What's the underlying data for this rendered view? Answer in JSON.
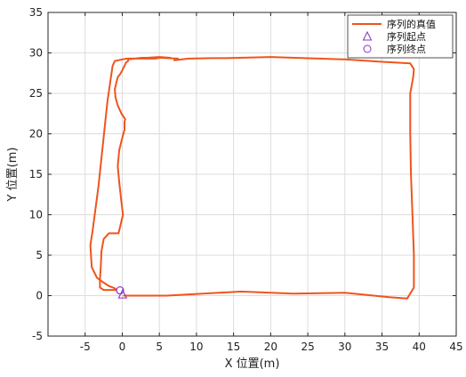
{
  "chart_data": {
    "type": "line",
    "xlabel": "X 位置(m)",
    "ylabel": "Y 位置(m)",
    "xlim": [
      -10,
      45
    ],
    "ylim": [
      -5,
      35
    ],
    "xticks": [
      -5,
      0,
      5,
      10,
      15,
      20,
      25,
      30,
      35,
      40,
      45
    ],
    "yticks": [
      -5,
      0,
      5,
      10,
      15,
      20,
      25,
      30,
      35
    ],
    "grid": true,
    "legend_position": "top-right",
    "colors": {
      "line": "#f0541c",
      "start": "#8a2fc2",
      "end": "#8a2fc2"
    },
    "series": [
      {
        "name": "序列的真值",
        "x": [
          0.2,
          6,
          16,
          23,
          30,
          36,
          38.4,
          39.3,
          39.3,
          39.1,
          38.9,
          38.8,
          38.8,
          39.2,
          39.3,
          38.8,
          35,
          30,
          20,
          14,
          12,
          9,
          7,
          7.5,
          5,
          4.5,
          0.6,
          -0.5,
          -1,
          -1.3,
          -2,
          -3.2,
          -4,
          -4.3,
          -4.1,
          -3.4,
          -2.5,
          -1.8,
          -1,
          -0.8,
          -2.5,
          -3,
          -3,
          -2.9,
          -2.8,
          -2.5,
          -1.8,
          -0.5,
          0.1,
          -0.1,
          -0.4,
          -0.6,
          -0.4,
          0,
          0.3,
          0.3,
          0.4,
          -0.1,
          -0.6,
          -0.9,
          -1,
          -0.8,
          -0.6,
          -0.2,
          0.3,
          0.5,
          0.8,
          0.8,
          2.6,
          3.3,
          5,
          6.5
        ],
        "y": [
          0,
          0,
          0.5,
          0.25,
          0.35,
          -0.2,
          -0.35,
          1,
          5,
          10,
          15,
          20,
          25,
          27,
          28,
          28.7,
          28.9,
          29.2,
          29.5,
          29.35,
          29.35,
          29.3,
          29.1,
          29.3,
          29.4,
          29.3,
          29.3,
          29.1,
          29,
          28.4,
          24,
          13.5,
          8,
          6.2,
          3.5,
          2.2,
          1.6,
          1.2,
          0.9,
          0.7,
          0.7,
          1,
          2,
          3.5,
          5.5,
          7,
          7.7,
          7.7,
          10,
          11.5,
          14,
          16,
          18,
          19.5,
          20.5,
          21.5,
          21.8,
          22.5,
          23.5,
          24.5,
          25.5,
          26.3,
          27,
          27.5,
          28.4,
          28.8,
          29,
          29.2,
          29.4,
          29.4,
          29.5,
          29.4
        ]
      }
    ],
    "markers": [
      {
        "name": "序列起点",
        "shape": "triangle",
        "x": 0.05,
        "y": 0.15
      },
      {
        "name": "序列终点",
        "shape": "circle",
        "x": -0.3,
        "y": 0.65
      }
    ],
    "legend": [
      {
        "label": "序列的真值",
        "kind": "line"
      },
      {
        "label": "序列起点",
        "kind": "triangle"
      },
      {
        "label": "序列终点",
        "kind": "circle"
      }
    ]
  }
}
